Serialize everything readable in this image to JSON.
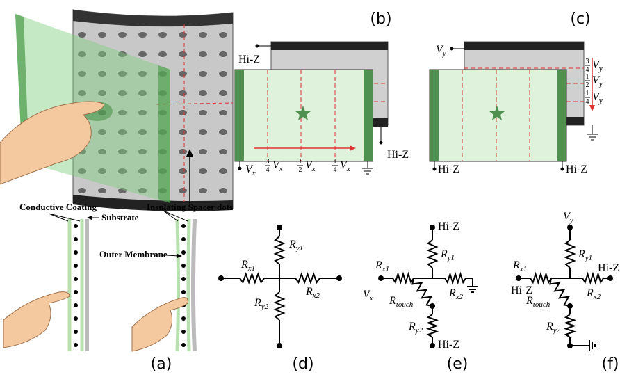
{
  "captions": {
    "a": "(a)",
    "b": "(b)",
    "c": "(c)",
    "d": "(d)",
    "e": "(e)",
    "f": "(f)"
  },
  "panel_a": {
    "conductive_coating": "Conductive Coating",
    "substrate": "Substrate",
    "insulating_spacer_dots": "Insulating Spacer dots",
    "outer_membrane": "Outer Membrane"
  },
  "panel_b": {
    "top_terminal": "Hi-Z",
    "bottom_terminal": "Hi-Z",
    "source": {
      "base": "V",
      "sub": "x"
    },
    "levels": [
      {
        "num": "3",
        "den": "4",
        "base": "V",
        "sub": "x"
      },
      {
        "num": "1",
        "den": "2",
        "base": "V",
        "sub": "x"
      },
      {
        "num": "1",
        "den": "4",
        "base": "V",
        "sub": "x"
      }
    ]
  },
  "panel_c": {
    "source": {
      "base": "V",
      "sub": "y"
    },
    "levels": [
      {
        "num": "3",
        "den": "4",
        "base": "V",
        "sub": "y"
      },
      {
        "num": "1",
        "den": "2",
        "base": "V",
        "sub": "y"
      },
      {
        "num": "1",
        "den": "4",
        "base": "V",
        "sub": "y"
      }
    ],
    "left_terminal": "Hi-Z",
    "right_terminal": "Hi-Z"
  },
  "panel_d": {
    "ry1": {
      "base": "R",
      "sub": "y1"
    },
    "rx1": {
      "base": "R",
      "sub": "x1"
    },
    "rx2": {
      "base": "R",
      "sub": "x2"
    },
    "ry2": {
      "base": "R",
      "sub": "y2"
    }
  },
  "panel_e": {
    "top_terminal": "Hi-Z",
    "ry1": {
      "base": "R",
      "sub": "y1"
    },
    "rx1": {
      "base": "R",
      "sub": "x1"
    },
    "source": {
      "base": "V",
      "sub": "x"
    },
    "rtouch": {
      "base": "R",
      "sub": "touch"
    },
    "rx2": {
      "base": "R",
      "sub": "x2"
    },
    "ry2": {
      "base": "R",
      "sub": "y2"
    },
    "bottom_terminal": "Hi-Z"
  },
  "panel_f": {
    "source": {
      "base": "V",
      "sub": "y"
    },
    "ry1": {
      "base": "R",
      "sub": "y1"
    },
    "rx1": {
      "base": "R",
      "sub": "x1"
    },
    "left_terminal": "Hi-Z",
    "rtouch": {
      "base": "R",
      "sub": "touch"
    },
    "right_terminal": "Hi-Z",
    "rx2": {
      "base": "R",
      "sub": "x2"
    },
    "ry2": {
      "base": "R",
      "sub": "y2"
    }
  }
}
